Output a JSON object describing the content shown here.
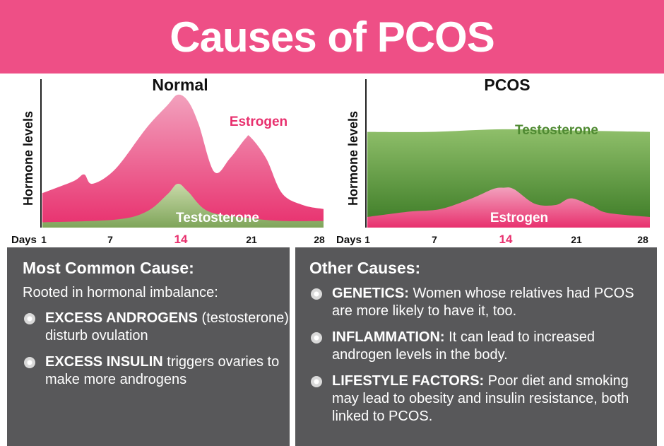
{
  "title": "Causes of PCOS",
  "chart_data": [
    {
      "type": "area",
      "title": "Normal",
      "ylabel": "Hormone levels",
      "xlabel": "Days",
      "x_ticks": [
        1,
        7,
        14,
        21,
        28
      ],
      "highlight_tick": 14,
      "series": [
        {
          "name": "Estrogen",
          "color": "#e8306e",
          "points": [
            [
              1,
              0.26
            ],
            [
              4,
              0.35
            ],
            [
              5,
              0.4
            ],
            [
              5.8,
              0.33
            ],
            [
              8,
              0.44
            ],
            [
              11,
              0.75
            ],
            [
              13,
              0.92
            ],
            [
              14,
              1.0
            ],
            [
              15,
              0.95
            ],
            [
              16,
              0.78
            ],
            [
              17.5,
              0.42
            ],
            [
              19,
              0.52
            ],
            [
              20.5,
              0.67
            ],
            [
              21,
              0.68
            ],
            [
              22.5,
              0.52
            ],
            [
              24,
              0.26
            ],
            [
              26,
              0.17
            ],
            [
              28,
              0.14
            ]
          ]
        },
        {
          "name": "Testosterone",
          "color": "#7fa55a",
          "points": [
            [
              1,
              0.04
            ],
            [
              8,
              0.06
            ],
            [
              11,
              0.12
            ],
            [
              13,
              0.25
            ],
            [
              14,
              0.33
            ],
            [
              15,
              0.27
            ],
            [
              17,
              0.12
            ],
            [
              21,
              0.07
            ],
            [
              24,
              0.05
            ],
            [
              28,
              0.05
            ]
          ]
        }
      ]
    },
    {
      "type": "area",
      "title": "PCOS",
      "ylabel": "Hormone levels",
      "xlabel": "Days",
      "x_ticks": [
        1,
        7,
        14,
        21,
        28
      ],
      "highlight_tick": 14,
      "series": [
        {
          "name": "Testosterone",
          "color": "#4f8a32",
          "points": [
            [
              1,
              0.72
            ],
            [
              7,
              0.72
            ],
            [
              14,
              0.74
            ],
            [
              21,
              0.73
            ],
            [
              28,
              0.72
            ]
          ]
        },
        {
          "name": "Estrogen",
          "color": "#e8306e",
          "points": [
            [
              1,
              0.08
            ],
            [
              5,
              0.12
            ],
            [
              8,
              0.14
            ],
            [
              11,
              0.22
            ],
            [
              13,
              0.29
            ],
            [
              14,
              0.3
            ],
            [
              15,
              0.29
            ],
            [
              17,
              0.18
            ],
            [
              19,
              0.17
            ],
            [
              20.5,
              0.22
            ],
            [
              22.5,
              0.16
            ],
            [
              24,
              0.11
            ],
            [
              28,
              0.08
            ]
          ]
        }
      ]
    }
  ],
  "panels": {
    "left": {
      "heading": "Most Common Cause:",
      "intro": "Rooted in hormonal imbalance:",
      "items": [
        {
          "term": "EXCESS ANDROGENS",
          "text": "(testosterone) disturb ovulation"
        },
        {
          "term": "EXCESS INSULIN",
          "text": "triggers ovaries to make more androgens"
        }
      ]
    },
    "right": {
      "heading": "Other Causes:",
      "items": [
        {
          "term": "GENETICS:",
          "text": "Women whose relatives had PCOS are more likely to have it, too."
        },
        {
          "term": "INFLAMMATION:",
          "text": "It can lead to increased androgen levels in the body."
        },
        {
          "term": "LIFESTYLE FACTORS:",
          "text": "Poor diet and smoking may lead to obesity and insulin resistance, both linked to PCOS."
        }
      ]
    }
  },
  "colors": {
    "banner": "#ee4f86",
    "panel": "#58585a",
    "estrogen": "#e8306e",
    "testosterone": "#4f8a32",
    "highlight": "#e8306e"
  }
}
